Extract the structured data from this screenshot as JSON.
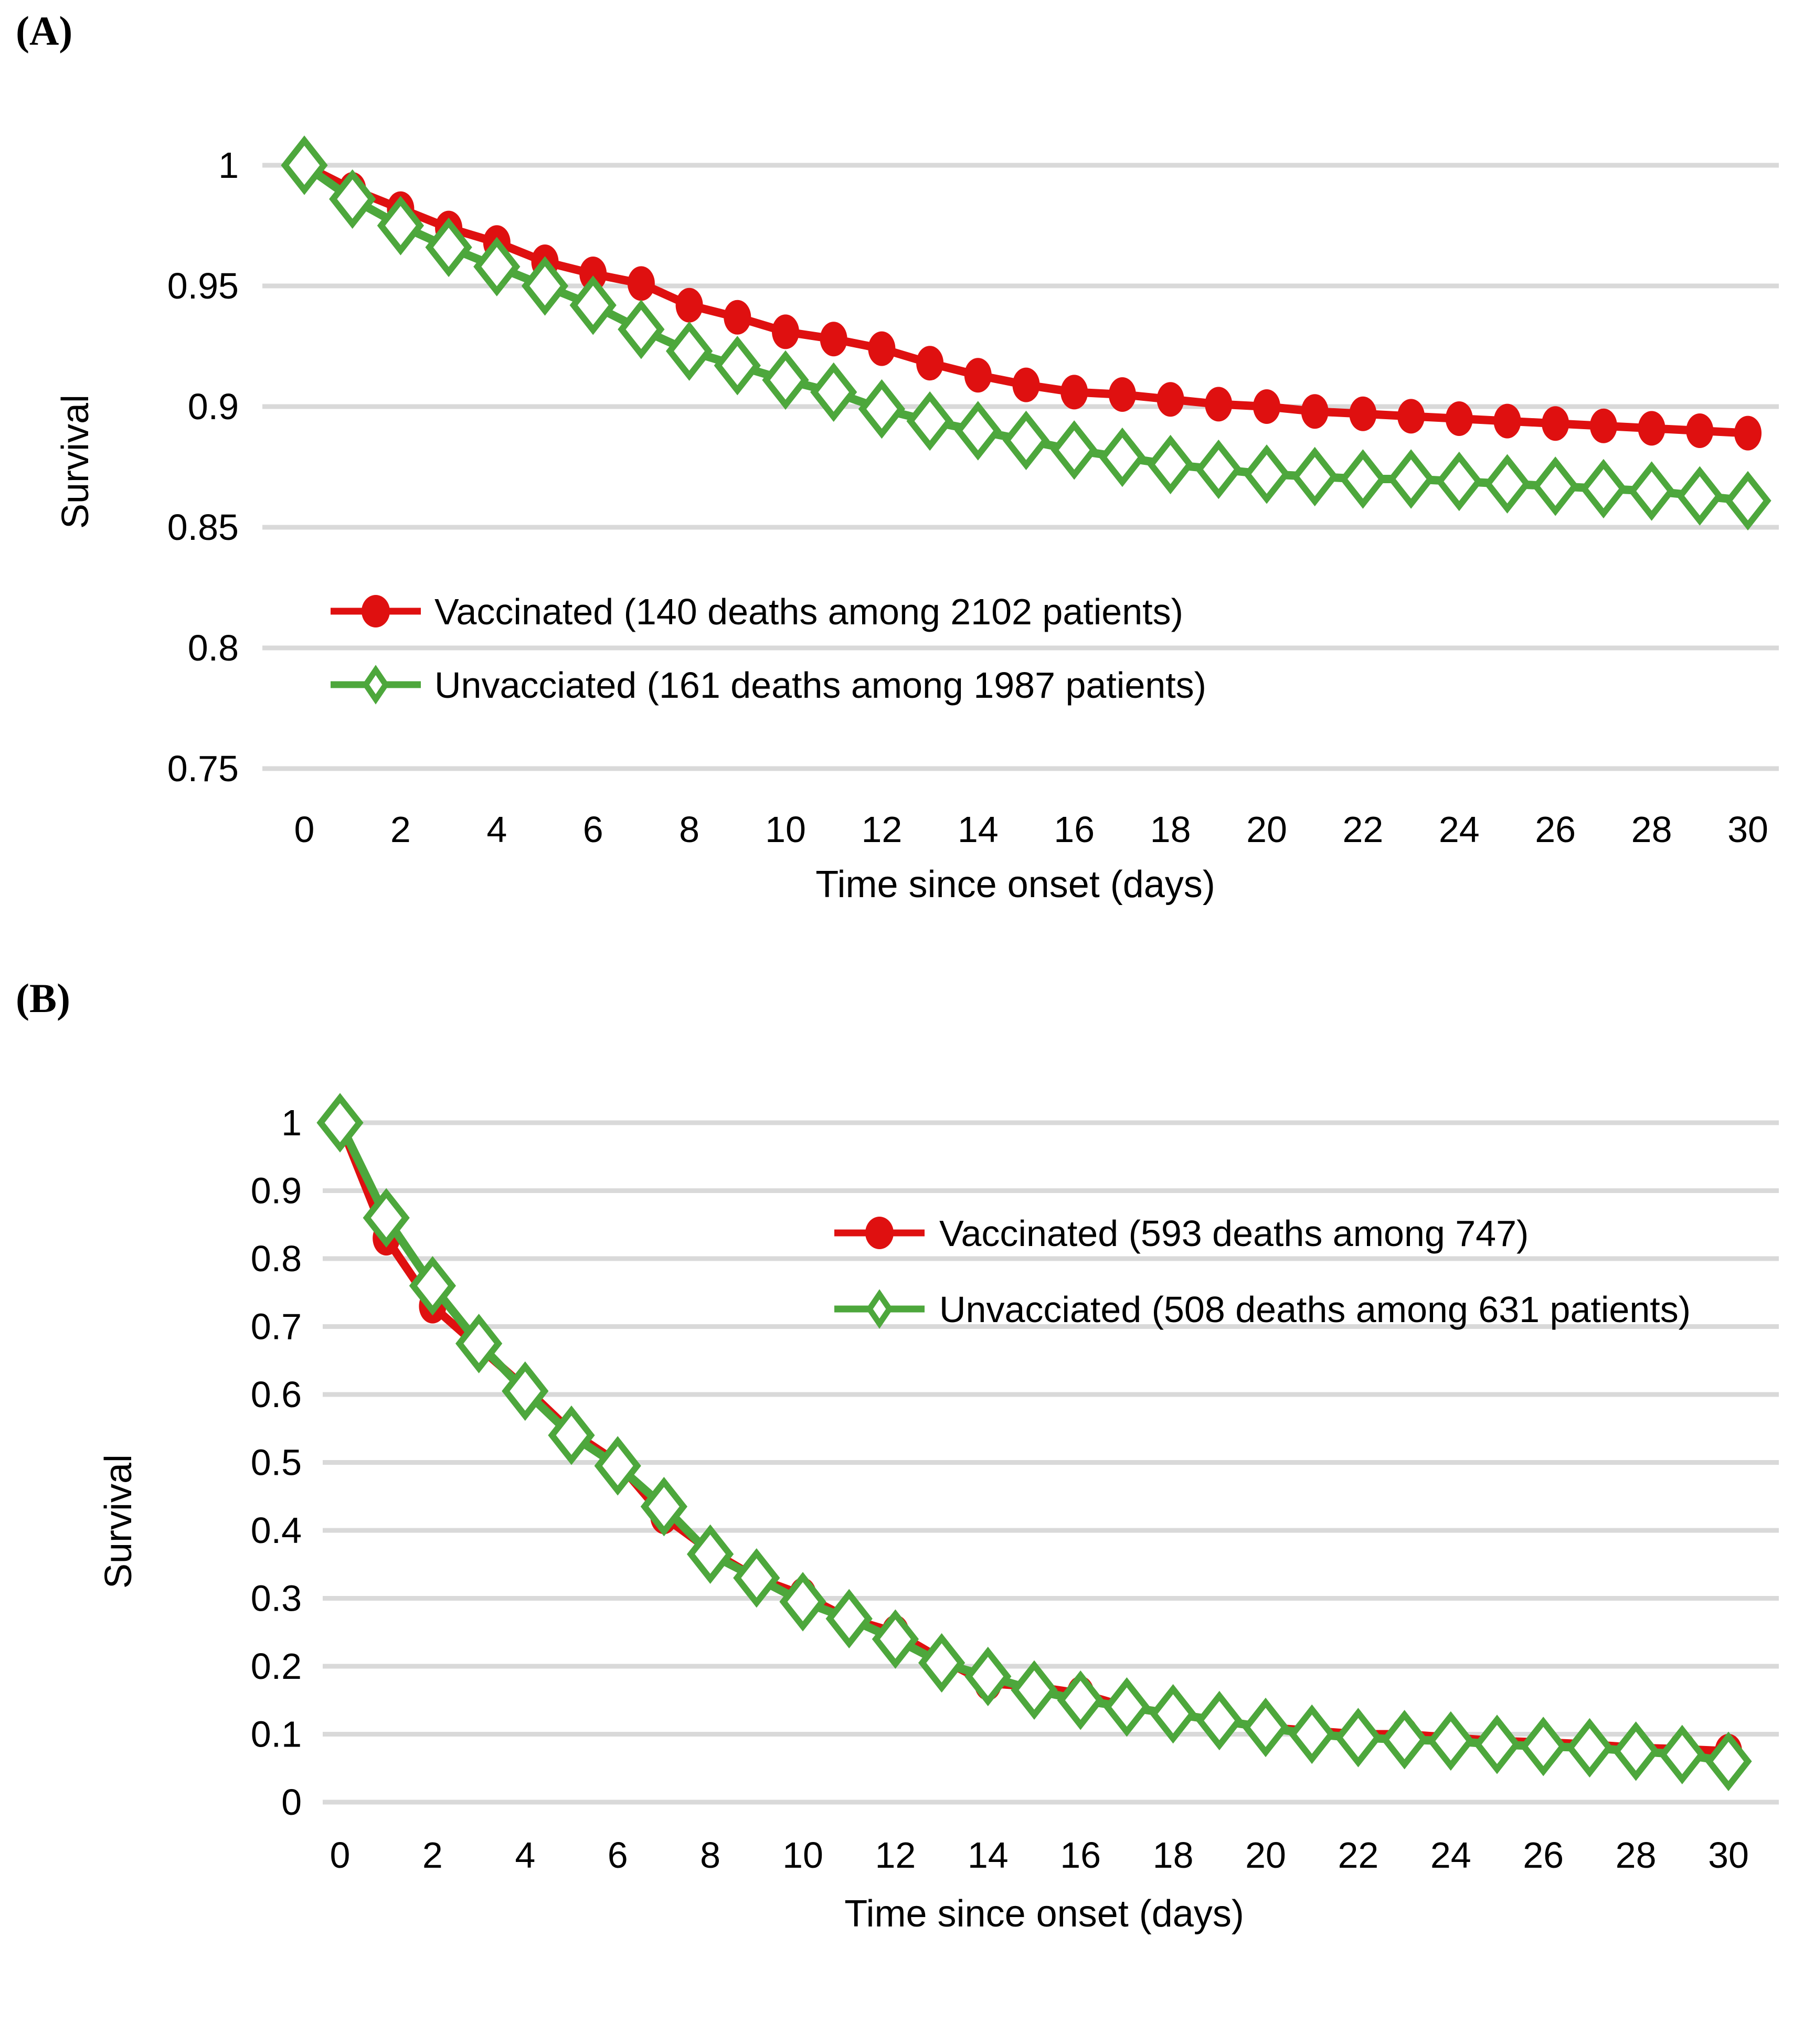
{
  "style": {
    "background": "#ffffff",
    "gridline_color": "#d9d9d9",
    "text_color": "#000000",
    "red": "#df1010",
    "green": "#4da73c"
  },
  "panels": [
    {
      "tag": "(A)"
    },
    {
      "tag": "(B)"
    }
  ],
  "chart_data": [
    {
      "type": "line",
      "panel": "A",
      "title": "",
      "xlabel": "Time since onset (days)",
      "ylabel": "Survival",
      "grid": true,
      "legend_position": "inside bottom-left",
      "ylim": [
        0.75,
        1
      ],
      "x": [
        0,
        1,
        2,
        3,
        4,
        5,
        6,
        7,
        8,
        9,
        10,
        11,
        12,
        13,
        14,
        15,
        16,
        17,
        18,
        19,
        20,
        21,
        22,
        23,
        24,
        25,
        26,
        27,
        28,
        29,
        30
      ],
      "xtick_values": [
        0,
        2,
        4,
        6,
        8,
        10,
        12,
        14,
        16,
        18,
        20,
        22,
        24,
        26,
        28,
        30
      ],
      "ytick_values": [
        1,
        0.95,
        0.9,
        0.85,
        0.8,
        0.75
      ],
      "ytick_labels": [
        "1",
        "0.95",
        "0.9",
        "0.85",
        "0.8",
        "0.75"
      ],
      "series": [
        {
          "name": "Vaccinated (140 deaths among 2102 patients)",
          "color": "#df1010",
          "marker": "filled-circle",
          "values": [
            1,
            0.99,
            0.982,
            0.974,
            0.968,
            0.96,
            0.955,
            0.951,
            0.942,
            0.937,
            0.931,
            0.928,
            0.924,
            0.918,
            0.913,
            0.909,
            0.906,
            0.905,
            0.903,
            0.901,
            0.9,
            0.898,
            0.897,
            0.896,
            0.895,
            0.894,
            0.893,
            0.892,
            0.891,
            0.89,
            0.889
          ]
        },
        {
          "name": "Unvacciated (161 deaths among 1987 patients)",
          "color": "#4da73c",
          "marker": "open-diamond",
          "values": [
            1,
            0.986,
            0.975,
            0.966,
            0.958,
            0.95,
            0.942,
            0.932,
            0.923,
            0.917,
            0.911,
            0.906,
            0.899,
            0.894,
            0.89,
            0.886,
            0.882,
            0.879,
            0.876,
            0.874,
            0.872,
            0.871,
            0.87,
            0.87,
            0.869,
            0.868,
            0.867,
            0.866,
            0.865,
            0.863,
            0.861
          ]
        }
      ]
    },
    {
      "type": "line",
      "panel": "B",
      "title": "",
      "xlabel": "Time since onset (days)",
      "ylabel": "Survival",
      "grid": true,
      "legend_position": "inside top-right",
      "ylim": [
        0,
        1
      ],
      "x": [
        0,
        1,
        2,
        3,
        4,
        5,
        6,
        7,
        8,
        9,
        10,
        11,
        12,
        13,
        14,
        15,
        16,
        17,
        18,
        19,
        20,
        21,
        22,
        23,
        24,
        25,
        26,
        27,
        28,
        29,
        30
      ],
      "xtick_values": [
        0,
        2,
        4,
        6,
        8,
        10,
        12,
        14,
        16,
        18,
        20,
        22,
        24,
        26,
        28,
        30
      ],
      "ytick_values": [
        1,
        0.9,
        0.8,
        0.7,
        0.6,
        0.5,
        0.4,
        0.3,
        0.2,
        0.1,
        0
      ],
      "ytick_labels": [
        "1",
        "0.9",
        "0.8",
        "0.7",
        "0.6",
        "0.5",
        "0.4",
        "0.3",
        "0.2",
        "0.1",
        "0"
      ],
      "series": [
        {
          "name": "Vaccinated (593 deaths among 747)",
          "color": "#df1010",
          "marker": "filled-circle",
          "values": [
            1,
            0.83,
            0.73,
            0.67,
            0.61,
            0.545,
            0.5,
            0.42,
            0.37,
            0.33,
            0.305,
            0.27,
            0.25,
            0.21,
            0.175,
            0.17,
            0.16,
            0.14,
            0.13,
            0.12,
            0.11,
            0.105,
            0.1,
            0.1,
            0.095,
            0.09,
            0.088,
            0.085,
            0.08,
            0.078,
            0.075
          ]
        },
        {
          "name": "Unvacciated (508 deaths among 631 patients)",
          "color": "#4da73c",
          "marker": "open-diamond",
          "values": [
            1,
            0.86,
            0.76,
            0.675,
            0.605,
            0.54,
            0.495,
            0.435,
            0.365,
            0.33,
            0.295,
            0.27,
            0.24,
            0.205,
            0.185,
            0.165,
            0.15,
            0.14,
            0.13,
            0.12,
            0.11,
            0.1,
            0.095,
            0.092,
            0.09,
            0.085,
            0.082,
            0.08,
            0.075,
            0.07,
            0.06
          ]
        }
      ]
    }
  ]
}
